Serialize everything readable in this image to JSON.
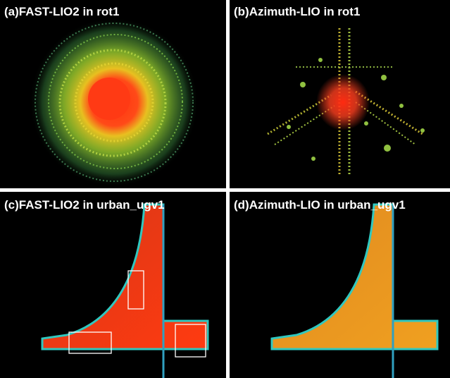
{
  "panels": [
    {
      "label": "(a)FAST-LIO2 in rot1"
    },
    {
      "label": "(b)Azimuth-LIO in rot1"
    },
    {
      "label": "(c)FAST-LIO2 in urban_ugv1"
    },
    {
      "label": "(d)Azimuth-LIO in urban_ugv1"
    }
  ]
}
